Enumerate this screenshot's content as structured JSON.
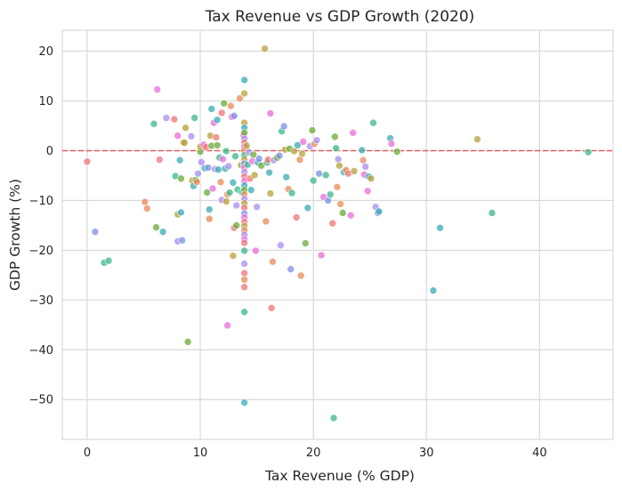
{
  "chart_data": {
    "type": "scatter",
    "title": "Tax Revenue vs GDP Growth (2020)",
    "xlabel": "Tax Revenue (% GDP)",
    "ylabel": "GDP Growth (%)",
    "xlim": [
      -2.2,
      46.5
    ],
    "ylim": [
      -58,
      24.2
    ],
    "xticks": [
      0,
      10,
      20,
      30,
      40
    ],
    "yticks": [
      20,
      10,
      0,
      -10,
      -20,
      -30,
      -40,
      -50
    ],
    "grid": true,
    "legend": "none",
    "reference_line": {
      "y": 0,
      "style": "dashed",
      "color": "#e0504f"
    },
    "colors": {
      "background": "#ffffff",
      "grid": "#d9d9d9",
      "text": "#262626"
    },
    "points": [
      {
        "x": 0.0,
        "y": -2.2,
        "color": "#f07378"
      },
      {
        "x": 0.7,
        "y": -16.3,
        "color": "#7b8fe0"
      },
      {
        "x": 1.5,
        "y": -22.5,
        "color": "#3cb58b"
      },
      {
        "x": 1.9,
        "y": -22.1,
        "color": "#3cb58b"
      },
      {
        "x": 5.1,
        "y": -10.3,
        "color": "#e88a55"
      },
      {
        "x": 5.3,
        "y": -11.6,
        "color": "#e88a55"
      },
      {
        "x": 5.9,
        "y": 5.4,
        "color": "#3cb58b"
      },
      {
        "x": 6.1,
        "y": -15.4,
        "color": "#6aaa3a"
      },
      {
        "x": 6.2,
        "y": 12.3,
        "color": "#e86cd8"
      },
      {
        "x": 6.4,
        "y": -1.8,
        "color": "#f07378"
      },
      {
        "x": 6.7,
        "y": -16.3,
        "color": "#3aaab5"
      },
      {
        "x": 7.0,
        "y": 6.6,
        "color": "#a98cf0"
      },
      {
        "x": 7.7,
        "y": 6.3,
        "color": "#f07378"
      },
      {
        "x": 7.8,
        "y": -5.1,
        "color": "#3cb58b"
      },
      {
        "x": 8.0,
        "y": -12.8,
        "color": "#b5a03a"
      },
      {
        "x": 8.0,
        "y": -18.2,
        "color": "#a98cf0"
      },
      {
        "x": 8.0,
        "y": 3.0,
        "color": "#e86cd8"
      },
      {
        "x": 8.2,
        "y": -1.9,
        "color": "#3aaab5"
      },
      {
        "x": 8.3,
        "y": -5.6,
        "color": "#6aaa3a"
      },
      {
        "x": 8.3,
        "y": -12.4,
        "color": "#3aaab5"
      },
      {
        "x": 8.4,
        "y": -18.0,
        "color": "#7b8fe0"
      },
      {
        "x": 8.5,
        "y": 1.7,
        "color": "#b5a03a"
      },
      {
        "x": 8.6,
        "y": 1.6,
        "color": "#b5a03a"
      },
      {
        "x": 8.7,
        "y": 4.6,
        "color": "#b5a03a"
      },
      {
        "x": 8.9,
        "y": -38.4,
        "color": "#6aaa3a"
      },
      {
        "x": 9.2,
        "y": 2.9,
        "color": "#a98cf0"
      },
      {
        "x": 9.3,
        "y": -6.0,
        "color": "#b5a03a"
      },
      {
        "x": 9.4,
        "y": -7.1,
        "color": "#3aaab5"
      },
      {
        "x": 9.5,
        "y": 6.6,
        "color": "#3cb58b"
      },
      {
        "x": 9.6,
        "y": -5.9,
        "color": "#6aaa3a"
      },
      {
        "x": 9.7,
        "y": -6.3,
        "color": "#e88a55"
      },
      {
        "x": 9.8,
        "y": -4.6,
        "color": "#a98cf0"
      },
      {
        "x": 10.0,
        "y": -0.2,
        "color": "#6aaa3a"
      },
      {
        "x": 10.0,
        "y": 0.8,
        "color": "#b5a03a"
      },
      {
        "x": 10.1,
        "y": -2.3,
        "color": "#a98cf0"
      },
      {
        "x": 10.3,
        "y": 1.2,
        "color": "#e86cd8"
      },
      {
        "x": 10.4,
        "y": -3.5,
        "color": "#3aaab5"
      },
      {
        "x": 10.5,
        "y": 0.7,
        "color": "#f07378"
      },
      {
        "x": 10.6,
        "y": -8.4,
        "color": "#6aaa3a"
      },
      {
        "x": 10.7,
        "y": -3.4,
        "color": "#7b8fe0"
      },
      {
        "x": 10.8,
        "y": -11.8,
        "color": "#3aaab5"
      },
      {
        "x": 10.8,
        "y": -13.7,
        "color": "#e88a55"
      },
      {
        "x": 10.9,
        "y": 3.0,
        "color": "#b5a03a"
      },
      {
        "x": 11.0,
        "y": 8.4,
        "color": "#3aaab5"
      },
      {
        "x": 11.0,
        "y": 1.0,
        "color": "#6aaa3a"
      },
      {
        "x": 11.1,
        "y": -7.6,
        "color": "#e86cd8"
      },
      {
        "x": 11.2,
        "y": 5.6,
        "color": "#e86cd8"
      },
      {
        "x": 11.3,
        "y": -3.7,
        "color": "#a98cf0"
      },
      {
        "x": 11.4,
        "y": 2.7,
        "color": "#f07378"
      },
      {
        "x": 11.5,
        "y": 6.2,
        "color": "#3aaab5"
      },
      {
        "x": 11.5,
        "y": 1.1,
        "color": "#6aaa3a"
      },
      {
        "x": 11.6,
        "y": -3.8,
        "color": "#3aaab5"
      },
      {
        "x": 11.7,
        "y": -1.4,
        "color": "#3cb58b"
      },
      {
        "x": 11.8,
        "y": -6.3,
        "color": "#e88a55"
      },
      {
        "x": 11.9,
        "y": 7.6,
        "color": "#f07378"
      },
      {
        "x": 11.9,
        "y": -9.9,
        "color": "#a98cf0"
      },
      {
        "x": 12.0,
        "y": -1.7,
        "color": "#e86cd8"
      },
      {
        "x": 12.1,
        "y": 9.5,
        "color": "#6aaa3a"
      },
      {
        "x": 12.2,
        "y": -3.6,
        "color": "#3aaab5"
      },
      {
        "x": 12.3,
        "y": -0.1,
        "color": "#3cb58b"
      },
      {
        "x": 12.3,
        "y": -10.2,
        "color": "#b5a03a"
      },
      {
        "x": 12.4,
        "y": -35.1,
        "color": "#e86cd8"
      },
      {
        "x": 12.4,
        "y": -8.8,
        "color": "#e88a55"
      },
      {
        "x": 12.5,
        "y": -3.1,
        "color": "#a98cf0"
      },
      {
        "x": 12.6,
        "y": -8.4,
        "color": "#3cb58b"
      },
      {
        "x": 12.7,
        "y": 9.0,
        "color": "#e88a55"
      },
      {
        "x": 12.8,
        "y": 6.8,
        "color": "#e86cd8"
      },
      {
        "x": 12.9,
        "y": -21.1,
        "color": "#b5a03a"
      },
      {
        "x": 12.9,
        "y": -6.4,
        "color": "#3aaab5"
      },
      {
        "x": 13.0,
        "y": 7.0,
        "color": "#7b8fe0"
      },
      {
        "x": 13.0,
        "y": -15.5,
        "color": "#f07378"
      },
      {
        "x": 13.1,
        "y": -1.1,
        "color": "#3cb58b"
      },
      {
        "x": 13.2,
        "y": -11.0,
        "color": "#a98cf0"
      },
      {
        "x": 13.2,
        "y": -15.0,
        "color": "#6aaa3a"
      },
      {
        "x": 13.3,
        "y": -7.8,
        "color": "#3cb58b"
      },
      {
        "x": 13.5,
        "y": 10.5,
        "color": "#e88a55"
      },
      {
        "x": 13.6,
        "y": -2.9,
        "color": "#b5a03a"
      },
      {
        "x": 13.7,
        "y": -8.4,
        "color": "#3aaab5"
      },
      {
        "x": 13.8,
        "y": 3.1,
        "color": "#e86cd8"
      },
      {
        "x": 13.9,
        "y": 14.2,
        "color": "#3aaab5"
      },
      {
        "x": 13.9,
        "y": 11.5,
        "color": "#b5a03a"
      },
      {
        "x": 13.9,
        "y": 5.6,
        "color": "#b5a03a"
      },
      {
        "x": 13.9,
        "y": 4.6,
        "color": "#3aaab5"
      },
      {
        "x": 13.9,
        "y": 3.6,
        "color": "#6aaa3a"
      },
      {
        "x": 13.9,
        "y": 2.4,
        "color": "#a98cf0"
      },
      {
        "x": 13.9,
        "y": 1.6,
        "color": "#f07378"
      },
      {
        "x": 13.9,
        "y": 0.8,
        "color": "#e86cd8"
      },
      {
        "x": 13.9,
        "y": 0.0,
        "color": "#e88a55"
      },
      {
        "x": 13.9,
        "y": -0.9,
        "color": "#3cb58b"
      },
      {
        "x": 13.9,
        "y": -1.8,
        "color": "#b5a03a"
      },
      {
        "x": 13.9,
        "y": -2.6,
        "color": "#7b8fe0"
      },
      {
        "x": 13.9,
        "y": -3.4,
        "color": "#e86cd8"
      },
      {
        "x": 13.9,
        "y": -4.3,
        "color": "#a98cf0"
      },
      {
        "x": 13.9,
        "y": -5.2,
        "color": "#f07378"
      },
      {
        "x": 13.9,
        "y": -6.1,
        "color": "#e86cd8"
      },
      {
        "x": 13.9,
        "y": -7.0,
        "color": "#3aaab5"
      },
      {
        "x": 13.9,
        "y": -7.9,
        "color": "#6aaa3a"
      },
      {
        "x": 13.9,
        "y": -8.8,
        "color": "#e88a55"
      },
      {
        "x": 13.9,
        "y": -9.7,
        "color": "#a98cf0"
      },
      {
        "x": 13.9,
        "y": -10.6,
        "color": "#b5a03a"
      },
      {
        "x": 13.9,
        "y": -11.5,
        "color": "#f07378"
      },
      {
        "x": 13.9,
        "y": -12.6,
        "color": "#7b8fe0"
      },
      {
        "x": 13.9,
        "y": -13.4,
        "color": "#e86cd8"
      },
      {
        "x": 13.9,
        "y": -14.3,
        "color": "#f07378"
      },
      {
        "x": 13.9,
        "y": -15.1,
        "color": "#b5a03a"
      },
      {
        "x": 13.9,
        "y": -16.0,
        "color": "#e88a55"
      },
      {
        "x": 13.9,
        "y": -16.9,
        "color": "#a98cf0"
      },
      {
        "x": 13.9,
        "y": -17.8,
        "color": "#e86cd8"
      },
      {
        "x": 13.9,
        "y": -18.5,
        "color": "#f07378"
      },
      {
        "x": 13.9,
        "y": -20.1,
        "color": "#3cb58b"
      },
      {
        "x": 13.9,
        "y": -22.7,
        "color": "#a98cf0"
      },
      {
        "x": 13.9,
        "y": -24.6,
        "color": "#f07378"
      },
      {
        "x": 13.9,
        "y": -25.9,
        "color": "#e88a55"
      },
      {
        "x": 13.9,
        "y": -27.4,
        "color": "#f07378"
      },
      {
        "x": 13.9,
        "y": -32.4,
        "color": "#3cb58b"
      },
      {
        "x": 13.9,
        "y": -50.6,
        "color": "#3aaab5"
      },
      {
        "x": 14.1,
        "y": 1.0,
        "color": "#b5a03a"
      },
      {
        "x": 14.2,
        "y": -2.8,
        "color": "#3cb58b"
      },
      {
        "x": 14.3,
        "y": -0.3,
        "color": "#a98cf0"
      },
      {
        "x": 14.4,
        "y": -5.6,
        "color": "#f07378"
      },
      {
        "x": 14.5,
        "y": -7.9,
        "color": "#3aaab5"
      },
      {
        "x": 14.6,
        "y": -2.1,
        "color": "#e86cd8"
      },
      {
        "x": 14.7,
        "y": -0.8,
        "color": "#6aaa3a"
      },
      {
        "x": 14.8,
        "y": -4.9,
        "color": "#b5a03a"
      },
      {
        "x": 14.9,
        "y": -20.1,
        "color": "#e86cd8"
      },
      {
        "x": 15.0,
        "y": -11.3,
        "color": "#a98cf0"
      },
      {
        "x": 15.1,
        "y": -2.4,
        "color": "#3aaab5"
      },
      {
        "x": 15.2,
        "y": -1.6,
        "color": "#7b8fe0"
      },
      {
        "x": 15.4,
        "y": -3.0,
        "color": "#6aaa3a"
      },
      {
        "x": 15.7,
        "y": 20.5,
        "color": "#b5a03a"
      },
      {
        "x": 15.8,
        "y": -14.2,
        "color": "#e88a55"
      },
      {
        "x": 15.9,
        "y": -2.4,
        "color": "#3cb58b"
      },
      {
        "x": 16.0,
        "y": -1.8,
        "color": "#f07378"
      },
      {
        "x": 16.1,
        "y": -4.4,
        "color": "#3aaab5"
      },
      {
        "x": 16.2,
        "y": 7.5,
        "color": "#e86cd8"
      },
      {
        "x": 16.2,
        "y": -8.6,
        "color": "#b5a03a"
      },
      {
        "x": 16.3,
        "y": -31.6,
        "color": "#f07378"
      },
      {
        "x": 16.4,
        "y": -22.3,
        "color": "#e88a55"
      },
      {
        "x": 16.5,
        "y": -1.9,
        "color": "#a98cf0"
      },
      {
        "x": 16.8,
        "y": -1.4,
        "color": "#6aaa3a"
      },
      {
        "x": 17.0,
        "y": -1.0,
        "color": "#7b8fe0"
      },
      {
        "x": 17.1,
        "y": -19.0,
        "color": "#a98cf0"
      },
      {
        "x": 17.2,
        "y": 3.9,
        "color": "#3cb58b"
      },
      {
        "x": 17.4,
        "y": 4.9,
        "color": "#7b8fe0"
      },
      {
        "x": 17.5,
        "y": 0.2,
        "color": "#b5a03a"
      },
      {
        "x": 17.6,
        "y": -5.3,
        "color": "#3aaab5"
      },
      {
        "x": 17.8,
        "y": -7.7,
        "color": "#e88a55"
      },
      {
        "x": 17.9,
        "y": 0.4,
        "color": "#6aaa3a"
      },
      {
        "x": 18.0,
        "y": -23.8,
        "color": "#7b8fe0"
      },
      {
        "x": 18.1,
        "y": -8.5,
        "color": "#3cb58b"
      },
      {
        "x": 18.3,
        "y": -0.1,
        "color": "#b5a03a"
      },
      {
        "x": 18.5,
        "y": -13.4,
        "color": "#f07378"
      },
      {
        "x": 18.6,
        "y": 1.1,
        "color": "#3aaab5"
      },
      {
        "x": 18.8,
        "y": -1.8,
        "color": "#e88a55"
      },
      {
        "x": 18.9,
        "y": -25.1,
        "color": "#e88a55"
      },
      {
        "x": 19.0,
        "y": -0.6,
        "color": "#b5a03a"
      },
      {
        "x": 19.1,
        "y": 1.8,
        "color": "#e86cd8"
      },
      {
        "x": 19.3,
        "y": -18.6,
        "color": "#6aaa3a"
      },
      {
        "x": 19.5,
        "y": -11.5,
        "color": "#3aaab5"
      },
      {
        "x": 19.7,
        "y": 0.9,
        "color": "#a98cf0"
      },
      {
        "x": 19.9,
        "y": 4.1,
        "color": "#6aaa3a"
      },
      {
        "x": 20.0,
        "y": -6.0,
        "color": "#3cb58b"
      },
      {
        "x": 20.1,
        "y": 1.4,
        "color": "#e88a55"
      },
      {
        "x": 20.3,
        "y": 2.1,
        "color": "#a98cf0"
      },
      {
        "x": 20.5,
        "y": -4.6,
        "color": "#7b8fe0"
      },
      {
        "x": 20.7,
        "y": -21.0,
        "color": "#e86cd8"
      },
      {
        "x": 20.9,
        "y": -9.3,
        "color": "#e86cd8"
      },
      {
        "x": 21.1,
        "y": -4.9,
        "color": "#3cb58b"
      },
      {
        "x": 21.3,
        "y": -10.0,
        "color": "#7b8fe0"
      },
      {
        "x": 21.5,
        "y": -8.8,
        "color": "#3cb58b"
      },
      {
        "x": 21.7,
        "y": -14.6,
        "color": "#f07378"
      },
      {
        "x": 21.8,
        "y": -53.7,
        "color": "#3cb58b"
      },
      {
        "x": 21.9,
        "y": 2.8,
        "color": "#6aaa3a"
      },
      {
        "x": 22.0,
        "y": 0.5,
        "color": "#3cb58b"
      },
      {
        "x": 22.1,
        "y": -7.3,
        "color": "#e88a55"
      },
      {
        "x": 22.2,
        "y": -1.7,
        "color": "#a98cf0"
      },
      {
        "x": 22.3,
        "y": -3.0,
        "color": "#b5a03a"
      },
      {
        "x": 22.4,
        "y": -10.7,
        "color": "#e88a55"
      },
      {
        "x": 22.6,
        "y": -12.5,
        "color": "#6aaa3a"
      },
      {
        "x": 22.7,
        "y": -4.3,
        "color": "#3aaab5"
      },
      {
        "x": 22.9,
        "y": -3.9,
        "color": "#e88a55"
      },
      {
        "x": 23.1,
        "y": -4.6,
        "color": "#f07378"
      },
      {
        "x": 23.3,
        "y": -13.0,
        "color": "#e86cd8"
      },
      {
        "x": 23.5,
        "y": 3.6,
        "color": "#e86cd8"
      },
      {
        "x": 23.6,
        "y": -4.1,
        "color": "#b5a03a"
      },
      {
        "x": 24.3,
        "y": 0.1,
        "color": "#3aaab5"
      },
      {
        "x": 24.4,
        "y": -1.9,
        "color": "#e88a55"
      },
      {
        "x": 24.5,
        "y": -4.8,
        "color": "#e86cd8"
      },
      {
        "x": 24.6,
        "y": -3.2,
        "color": "#a98cf0"
      },
      {
        "x": 24.8,
        "y": -8.1,
        "color": "#e86cd8"
      },
      {
        "x": 24.9,
        "y": -5.2,
        "color": "#3aaab5"
      },
      {
        "x": 25.1,
        "y": -5.6,
        "color": "#b5a03a"
      },
      {
        "x": 25.3,
        "y": 5.6,
        "color": "#3cb58b"
      },
      {
        "x": 25.5,
        "y": -11.3,
        "color": "#a98cf0"
      },
      {
        "x": 25.7,
        "y": -12.5,
        "color": "#7b8fe0"
      },
      {
        "x": 25.8,
        "y": -12.2,
        "color": "#3aaab5"
      },
      {
        "x": 26.8,
        "y": 2.5,
        "color": "#3aaab5"
      },
      {
        "x": 26.9,
        "y": 1.4,
        "color": "#e86cd8"
      },
      {
        "x": 27.4,
        "y": -0.2,
        "color": "#6aaa3a"
      },
      {
        "x": 30.6,
        "y": -28.1,
        "color": "#3aaab5"
      },
      {
        "x": 31.2,
        "y": -15.5,
        "color": "#3aaab5"
      },
      {
        "x": 34.5,
        "y": 2.3,
        "color": "#b5a03a"
      },
      {
        "x": 35.8,
        "y": -12.5,
        "color": "#3cb58b"
      },
      {
        "x": 44.3,
        "y": -0.3,
        "color": "#3cb58b"
      }
    ]
  }
}
